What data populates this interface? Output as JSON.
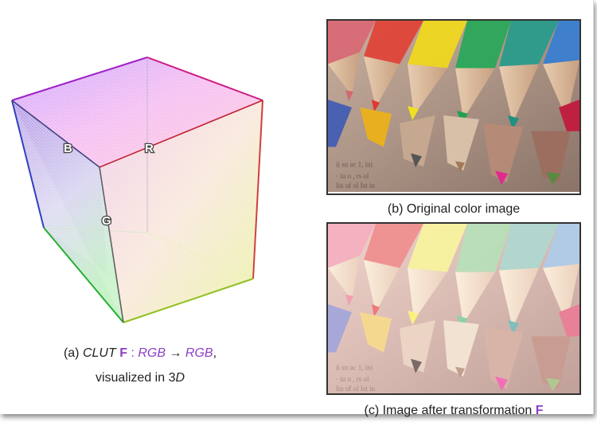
{
  "figure": {
    "cube": {
      "axis_labels": {
        "b": "B",
        "r": "R",
        "g": "G"
      }
    },
    "caption_a": {
      "prefix": "(a)",
      "clut": "CLUT",
      "f": "F",
      "colon": ":",
      "rgb_from": "RGB",
      "arrow": "→",
      "rgb_to": "RGB",
      "comma": ",",
      "line2_text": "visualized in 3",
      "line2_d": "D"
    },
    "caption_b": "(b) Original color image",
    "caption_c_text": "(c) Image after transformation",
    "caption_c_f": "F"
  },
  "colors": {
    "accent_purple": "#8a3fc8",
    "cube_edge_red": "#c8102e",
    "cube_edge_blue": "#1e2fa0",
    "cube_edge_green": "#1a9e2a",
    "cube_edge_magenta": "#b400c8"
  }
}
